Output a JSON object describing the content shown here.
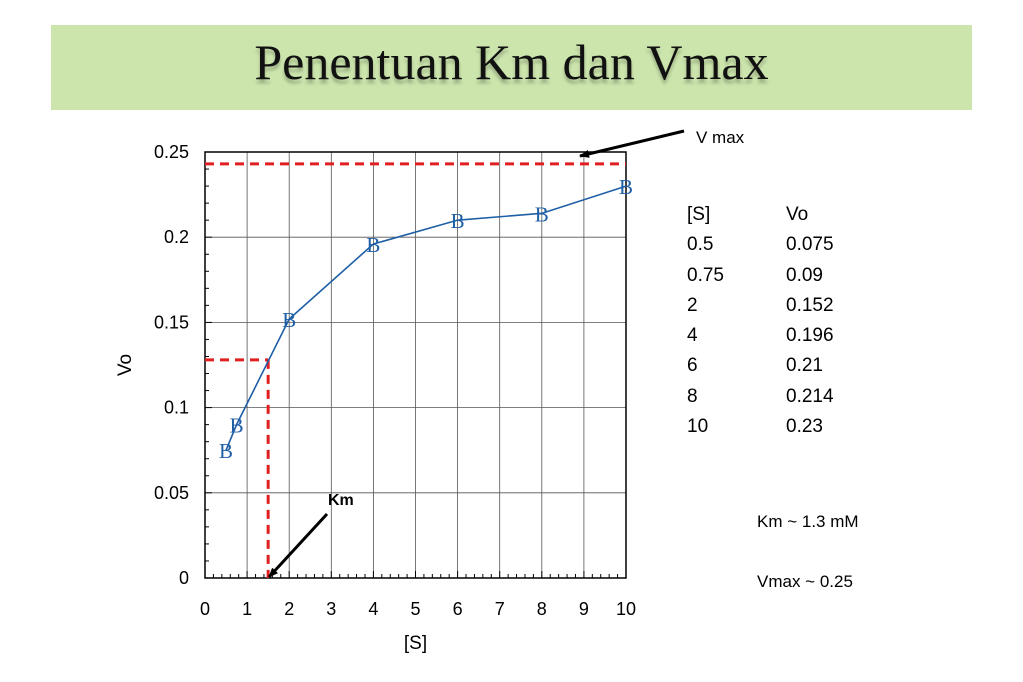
{
  "slide": {
    "title": "Penentuan Km dan Vmax"
  },
  "chart_data": {
    "type": "line",
    "title": "",
    "xlabel": "[S]",
    "ylabel": "Vo",
    "xlim": [
      0,
      10
    ],
    "ylim": [
      0,
      0.25
    ],
    "xticks": [
      "0",
      "1",
      "2",
      "3",
      "4",
      "5",
      "6",
      "7",
      "8",
      "9",
      "10"
    ],
    "yticks": [
      "0",
      "0.05",
      "0.1",
      "0.15",
      "0.2",
      "0.25"
    ],
    "grid": true,
    "marker_label": "B",
    "series": [
      {
        "x": [
          0.5,
          0.75,
          2,
          4,
          6,
          8,
          10
        ],
        "y": [
          0.075,
          0.09,
          0.152,
          0.196,
          0.21,
          0.214,
          0.23
        ],
        "color": "#1f5fa6"
      }
    ],
    "reference_lines": {
      "vmax_y": 0.243,
      "half_vmax_y": 0.128,
      "km_x": 1.5,
      "color": "#e02020"
    },
    "annotations": [
      {
        "text": "V max"
      },
      {
        "text": "Km"
      }
    ]
  },
  "table": {
    "headers": [
      "[S]",
      "Vo"
    ],
    "rows": [
      [
        "0.5",
        "0.075"
      ],
      [
        "0.75",
        "0.09"
      ],
      [
        "2",
        "0.152"
      ],
      [
        "4",
        "0.196"
      ],
      [
        "6",
        "0.21"
      ],
      [
        "8",
        "0.214"
      ],
      [
        "10",
        "0.23"
      ]
    ]
  },
  "notes": {
    "km": "Km ~ 1.3 mM",
    "vmax": "Vmax ~ 0.25"
  }
}
